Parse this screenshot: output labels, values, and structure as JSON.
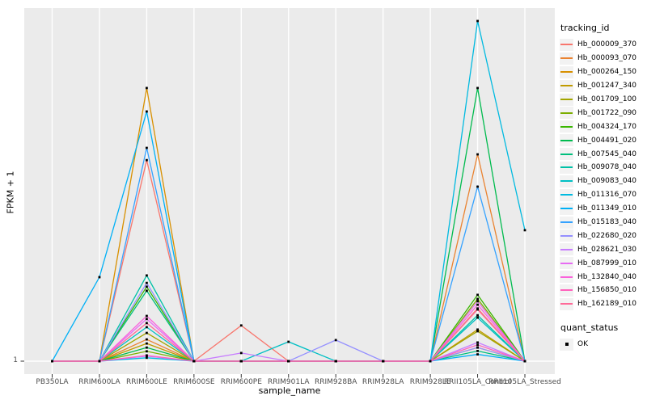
{
  "figure": {
    "background": "#FFFFFF",
    "panel_background": "#EBEBEB",
    "gridline_color": "#FFFFFF",
    "axis_text_color": "#4D4D4D",
    "marker_color": "#000000"
  },
  "chart_data": {
    "type": "line",
    "title": "",
    "xlabel": "sample_name",
    "ylabel": "FPKM + 1",
    "y_tick_labels": [
      "1"
    ],
    "value_units": "relative height above the y=1 baseline, as fraction of the tallest peak (axis shows only the tick '1')",
    "categories": [
      "PB350LA",
      "RRIM600LA",
      "RRIM600LE",
      "RRIM600SE",
      "RRIM600PE",
      "RRIM901LA",
      "RRIM928BA",
      "RRIM928LA",
      "RRIM928LE",
      "RRII105LA_Control",
      "RRII105LA_Stressed"
    ],
    "legend_title": "tracking_id",
    "marker": "black-filled-square",
    "series": [
      {
        "name": "Hb_000009_370",
        "color": "#F8766D",
        "values": [
          0,
          0,
          0.591,
          0,
          0.105,
          0,
          0,
          0,
          0,
          0.155,
          0
        ]
      },
      {
        "name": "Hb_000093_070",
        "color": "#EA8331",
        "values": [
          0,
          0,
          0.064,
          0,
          0,
          0,
          0,
          0,
          0,
          0.608,
          0
        ]
      },
      {
        "name": "Hb_000264_150",
        "color": "#D89000",
        "values": [
          0,
          0,
          0.803,
          0,
          0,
          0,
          0,
          0,
          0,
          0.04,
          0
        ]
      },
      {
        "name": "Hb_001247_340",
        "color": "#C09B00",
        "values": [
          0,
          0,
          0.052,
          0,
          0,
          0,
          0,
          0,
          0,
          0.093,
          0
        ]
      },
      {
        "name": "Hb_001709_100",
        "color": "#A3A500",
        "values": [
          0,
          0,
          0.083,
          0,
          0,
          0,
          0,
          0,
          0,
          0.088,
          0
        ]
      },
      {
        "name": "Hb_001722_090",
        "color": "#7CAE00",
        "values": [
          0,
          0,
          0.029,
          0,
          0,
          0,
          0,
          0,
          0,
          0.183,
          0
        ]
      },
      {
        "name": "Hb_004324_170",
        "color": "#39B600",
        "values": [
          0,
          0,
          0.219,
          0,
          0,
          0,
          0,
          0,
          0,
          0.195,
          0
        ]
      },
      {
        "name": "Hb_004491_020",
        "color": "#00BB4E",
        "values": [
          0,
          0,
          0.04,
          0,
          0,
          0,
          0,
          0,
          0,
          0.803,
          0
        ]
      },
      {
        "name": "Hb_007545_040",
        "color": "#00BF7D",
        "values": [
          0,
          0,
          0.207,
          0,
          0,
          0,
          0,
          0,
          0,
          0.03,
          0
        ]
      },
      {
        "name": "Hb_009078_040",
        "color": "#00C1A7",
        "values": [
          0,
          0,
          0.252,
          0,
          0,
          0,
          0,
          0,
          0,
          0.135,
          0
        ]
      },
      {
        "name": "Hb_009083_040",
        "color": "#00BFC4",
        "values": [
          0,
          0,
          0.1,
          0,
          0,
          0.057,
          0,
          0,
          0,
          0.128,
          0
        ]
      },
      {
        "name": "Hb_011316_070",
        "color": "#00BAE0",
        "values": [
          0,
          0,
          0.01,
          0,
          0,
          0,
          0,
          0,
          0,
          1.0,
          0.385
        ]
      },
      {
        "name": "Hb_011349_010",
        "color": "#00B0F6",
        "values": [
          0,
          0.247,
          0.734,
          0,
          0,
          0,
          0,
          0,
          0,
          0.02,
          0
        ]
      },
      {
        "name": "Hb_015183_040",
        "color": "#35A2FF",
        "values": [
          0,
          0,
          0.627,
          0,
          0,
          0,
          0,
          0,
          0,
          0.513,
          0
        ]
      },
      {
        "name": "Hb_022680_020",
        "color": "#9590FF",
        "values": [
          0,
          0,
          0.23,
          0,
          0,
          0,
          0.062,
          0,
          0,
          0.04,
          0
        ]
      },
      {
        "name": "Hb_028621_030",
        "color": "#C77CFF",
        "values": [
          0,
          0,
          0.015,
          0,
          0.024,
          0,
          0,
          0,
          0,
          0.055,
          0
        ]
      },
      {
        "name": "Hb_087999_010",
        "color": "#E76BF3",
        "values": [
          0,
          0,
          0.124,
          0,
          0,
          0,
          0,
          0,
          0,
          0.176,
          0
        ]
      },
      {
        "name": "Hb_132840_040",
        "color": "#FA62DB",
        "values": [
          0,
          0,
          0.133,
          0,
          0,
          0,
          0,
          0,
          0,
          0.166,
          0
        ]
      },
      {
        "name": "Hb_156850_010",
        "color": "#FF62BC",
        "values": [
          0,
          0,
          0.017,
          0,
          0,
          0,
          0,
          0,
          0,
          0.048,
          0
        ]
      },
      {
        "name": "Hb_162189_010",
        "color": "#FF6A98",
        "values": [
          0,
          0,
          0.112,
          0,
          0,
          0,
          0,
          0,
          0,
          0.152,
          0
        ]
      }
    ],
    "quant_legend": {
      "title": "quant_status",
      "items": [
        {
          "label": "OK"
        }
      ]
    }
  }
}
